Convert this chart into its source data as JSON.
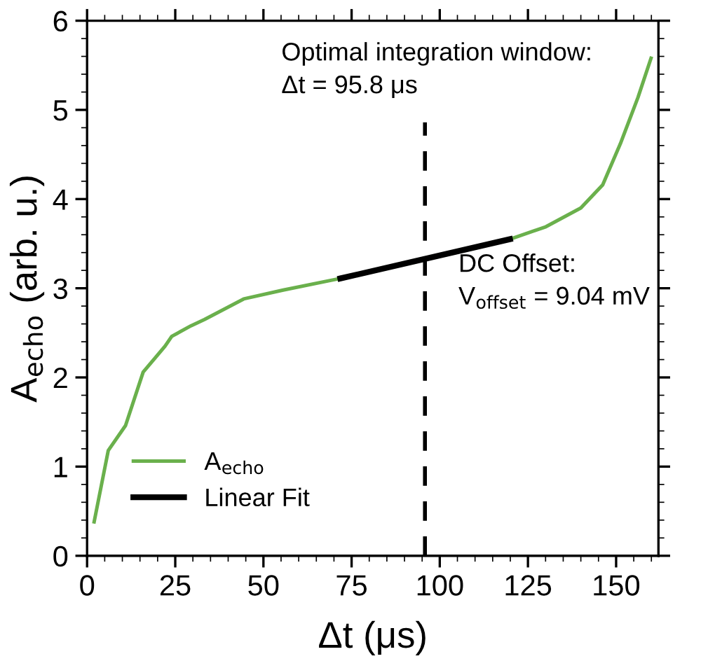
{
  "chart_data": {
    "type": "line",
    "xlabel": "Δt (μs)",
    "ylabel": "A$_{echo}$ (arb. u.)",
    "xlim": [
      0,
      162
    ],
    "ylim": [
      0,
      6
    ],
    "xticks": [
      0,
      25,
      50,
      75,
      100,
      125,
      150
    ],
    "yticks": [
      0,
      1,
      2,
      3,
      4,
      5,
      6
    ],
    "series": [
      {
        "name": "A$_{echo}$",
        "color": "#6ab04c",
        "x": [
          2.0,
          6.0,
          10.9,
          15.9,
          22.1,
          24.0,
          29.5,
          33.3,
          44.4,
          55.6,
          71.8,
          80,
          90,
          100,
          110,
          119.9,
          130.1,
          140,
          146.2,
          151.2,
          156.2,
          159.9
        ],
        "values": [
          0.38,
          1.18,
          1.46,
          2.06,
          2.35,
          2.46,
          2.58,
          2.65,
          2.88,
          2.98,
          3.11,
          3.18,
          3.27,
          3.36,
          3.45,
          3.55,
          3.69,
          3.9,
          4.16,
          4.62,
          5.14,
          5.58
        ]
      },
      {
        "name": "Linear Fit",
        "color": "#000000",
        "x": [
          71.8,
          119.9
        ],
        "values": [
          3.11,
          3.55
        ]
      }
    ],
    "ref_lines": [
      {
        "axis": "x",
        "value": 95.8,
        "color": "#000000",
        "line_style": "dashed"
      }
    ],
    "annotations": [
      "Optimal integration window:\nΔt = 95.8 μs",
      "DC Offset:\nV$_{offset}$ = 9.04 mV"
    ],
    "legend": "bottom left",
    "grid": false
  }
}
